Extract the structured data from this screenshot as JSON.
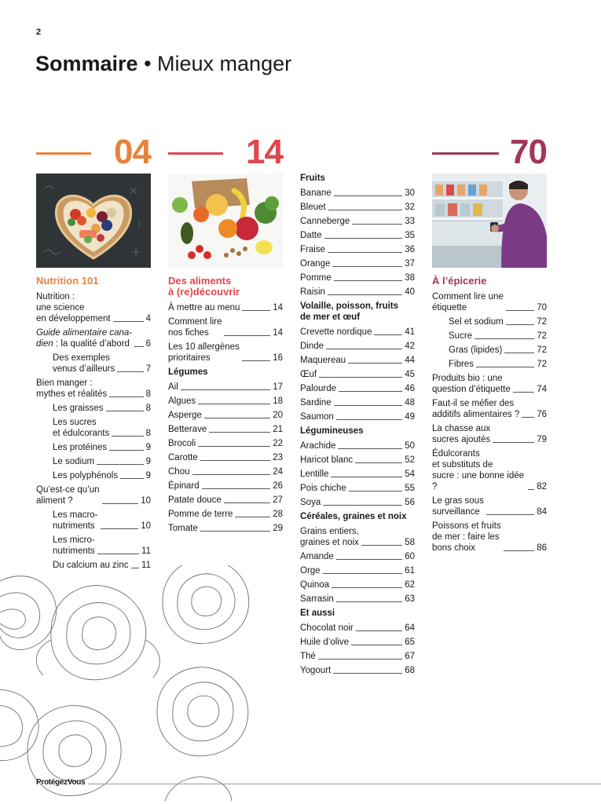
{
  "page_number": "2",
  "title": {
    "strong": "Sommaire",
    "bullet": " • ",
    "light": "Mieux manger"
  },
  "colors": {
    "orange": "#e8823a",
    "red": "#e0474c",
    "purple": "#a2365a",
    "text": "#1a1a1a"
  },
  "footer": {
    "logo": "ProtégezVous"
  },
  "col1": {
    "num": "04",
    "title": "Nutrition 101",
    "image_icon": "heart-bowl-food-photo",
    "entries": [
      {
        "label": "Nutrition :\nune science\nen développement",
        "page": "4",
        "indent": false
      },
      {
        "label_italic": "Guide alimentaire cana-\ndien",
        "label_rest": " : la qualité d’abord",
        "page": "6",
        "indent": false
      },
      {
        "label": "Des exemples\nvenus d’ailleurs",
        "page": "7",
        "indent": true
      },
      {
        "label": "Bien manger :\nmythes et réalités",
        "page": "8",
        "indent": false
      },
      {
        "label": "Les graisses",
        "page": "8",
        "indent": true
      },
      {
        "label": "Les sucres\net édulcorants",
        "page": "8",
        "indent": true
      },
      {
        "label": "Les protéines",
        "page": "9",
        "indent": true
      },
      {
        "label": "Le sodium",
        "page": "9",
        "indent": true
      },
      {
        "label": "Les polyphénols",
        "page": "9",
        "indent": true
      },
      {
        "label": "Qu’est-ce qu’un\naliment ?",
        "page": "10",
        "indent": false
      },
      {
        "label": "Les macro-\nnutriments",
        "page": "10",
        "indent": true
      },
      {
        "label": "Les micro-\nnutriments",
        "page": "11",
        "indent": true
      },
      {
        "label": "Du calcium au zinc",
        "page": "11",
        "indent": true
      }
    ]
  },
  "col2": {
    "num": "14",
    "title": "Des aliments\nà (re)découvrir",
    "image_icon": "fruits-vegetables-photo",
    "entries_a": [
      {
        "label": "À mettre au menu",
        "page": "14"
      },
      {
        "label": "Comment lire\nnos fiches",
        "page": "14"
      },
      {
        "label": "Les 10 allergènes\nprioritaires",
        "page": "16"
      }
    ],
    "cat_legumes": "Légumes",
    "entries_b": [
      {
        "label": "Ail",
        "page": "17"
      },
      {
        "label": "Algues",
        "page": "18"
      },
      {
        "label": "Asperge",
        "page": "20"
      },
      {
        "label": "Betterave",
        "page": "21"
      },
      {
        "label": "Brocoli",
        "page": "22"
      },
      {
        "label": "Carotte",
        "page": "23"
      },
      {
        "label": "Chou",
        "page": "24"
      },
      {
        "label": "Épinard",
        "page": "26"
      },
      {
        "label": "Patate douce",
        "page": "27"
      },
      {
        "label": "Pomme de terre",
        "page": "28"
      },
      {
        "label": "Tomate",
        "page": "29"
      }
    ]
  },
  "col3": {
    "cat_fruits": "Fruits",
    "fruits": [
      {
        "label": "Banane",
        "page": "30"
      },
      {
        "label": "Bleuet",
        "page": "32"
      },
      {
        "label": "Canneberge",
        "page": "33"
      },
      {
        "label": "Datte",
        "page": "35"
      },
      {
        "label": "Fraise",
        "page": "36"
      },
      {
        "label": "Orange",
        "page": "37"
      },
      {
        "label": "Pomme",
        "page": "38"
      },
      {
        "label": "Raisin",
        "page": "40"
      }
    ],
    "cat_volaille": "Volaille, poisson, fruits\nde mer et œuf",
    "volaille": [
      {
        "label": "Crevette nordique",
        "page": "41"
      },
      {
        "label": "Dinde",
        "page": "42"
      },
      {
        "label": "Maquereau",
        "page": "44"
      },
      {
        "label": "Œuf",
        "page": "45"
      },
      {
        "label": "Palourde",
        "page": "46"
      },
      {
        "label": "Sardine",
        "page": "48"
      },
      {
        "label": "Saumon",
        "page": "49"
      }
    ],
    "cat_legumineuses": "Légumineuses",
    "legumineuses": [
      {
        "label": "Arachide",
        "page": "50"
      },
      {
        "label": "Haricot blanc",
        "page": "52"
      },
      {
        "label": "Lentille",
        "page": "54"
      },
      {
        "label": "Pois chiche",
        "page": "55"
      },
      {
        "label": "Soya",
        "page": "56"
      }
    ],
    "cat_cereales": "Céréales, graines et noix",
    "cereales": [
      {
        "label": "Grains entiers,\ngraines et noix",
        "page": "58"
      },
      {
        "label": "Amande",
        "page": "60"
      },
      {
        "label": "Orge",
        "page": "61"
      },
      {
        "label": "Quinoa",
        "page": "62"
      },
      {
        "label": "Sarrasin",
        "page": "63"
      }
    ],
    "cat_aussi": "Et aussi",
    "aussi": [
      {
        "label": "Chocolat noir",
        "page": "64"
      },
      {
        "label": "Huile d’olive",
        "page": "65"
      },
      {
        "label": "Thé",
        "page": "67"
      },
      {
        "label": "Yogourt",
        "page": "68"
      }
    ]
  },
  "col4": {
    "num": "70",
    "title": "À l’épicerie",
    "image_icon": "grocery-shopper-photo",
    "entries": [
      {
        "label": "Comment lire une\nétiquette",
        "page": "70",
        "indent": false
      },
      {
        "label": "Sel et sodium",
        "page": "72",
        "indent": true
      },
      {
        "label": "Sucre",
        "page": "72",
        "indent": true
      },
      {
        "label": "Gras (lipides)",
        "page": "72",
        "indent": true
      },
      {
        "label": "Fibres",
        "page": "72",
        "indent": true
      },
      {
        "label": "Produits bio : une\nquestion d’étiquette",
        "page": "74",
        "indent": false
      },
      {
        "label": "Faut-il se méfier des\nadditifs alimentaires ?",
        "page": "76",
        "indent": false
      },
      {
        "label": "La chasse aux\nsucres ajoutés",
        "page": "79",
        "indent": false
      },
      {
        "label": "Édulcorants\net substituts de\nsucre : une bonne idée ?",
        "page": "82",
        "indent": false
      },
      {
        "label": "Le gras sous\nsurveillance",
        "page": "84",
        "indent": false
      },
      {
        "label": "Poissons et fruits\nde mer : faire les\nbons choix",
        "page": "86",
        "indent": false
      }
    ]
  }
}
